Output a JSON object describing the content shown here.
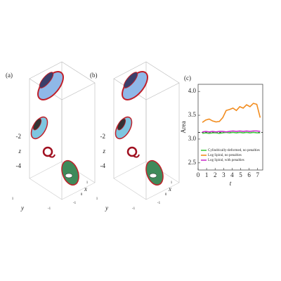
{
  "panels": [
    {
      "label": "(a)",
      "z_label": "z",
      "z_ticks": [
        -2,
        -4
      ],
      "y_label": "y",
      "y_ticks": [
        1,
        -1
      ],
      "x_label": "x",
      "x_ticks": [
        1,
        0,
        -1
      ]
    },
    {
      "label": "(b)",
      "z_label": "z",
      "z_ticks": [
        -2,
        -4
      ],
      "y_label": "y",
      "y_ticks": [
        1,
        -1
      ],
      "x_label": "x",
      "x_ticks": [
        1,
        0,
        -1
      ]
    }
  ],
  "chart_data": {
    "type": "line",
    "label": "(c)",
    "x_label": "t",
    "y_label": "Area",
    "x": [
      0.5,
      0.9,
      1.3,
      1.7,
      2.1,
      2.5,
      2.9,
      3.3,
      3.7,
      4.1,
      4.5,
      4.9,
      5.3,
      5.7,
      6.1,
      6.5,
      6.9,
      7.3
    ],
    "series": [
      {
        "name": "Cylindrically-deformed, no penalties",
        "color": "#44cc44",
        "values": [
          3.12,
          3.13,
          3.12,
          3.13,
          3.13,
          3.12,
          3.13,
          3.14,
          3.13,
          3.14,
          3.13,
          3.14,
          3.13,
          3.14,
          3.13,
          3.14,
          3.13,
          3.13
        ]
      },
      {
        "name": "Log Spiral, no penalties",
        "color": "#f28c1e",
        "values": [
          3.35,
          3.4,
          3.42,
          3.38,
          3.36,
          3.37,
          3.45,
          3.6,
          3.62,
          3.65,
          3.6,
          3.68,
          3.65,
          3.72,
          3.68,
          3.75,
          3.73,
          3.45
        ]
      },
      {
        "name": "Log Spiral, with penalties",
        "color": "#cc33cc",
        "values": [
          3.15,
          3.16,
          3.15,
          3.16,
          3.15,
          3.16,
          3.16,
          3.15,
          3.16,
          3.17,
          3.16,
          3.17,
          3.16,
          3.17,
          3.16,
          3.17,
          3.17,
          3.16
        ]
      }
    ],
    "reference_line": 3.14,
    "xlim": [
      0,
      7.6
    ],
    "xticks": [
      0,
      1,
      2,
      3,
      4,
      5,
      6,
      7
    ],
    "ylim": [
      2.35,
      4.15
    ],
    "yticks": [
      2.5,
      {
        "value": 3,
        "label": "3.0"
      },
      3.5,
      {
        "value": 4,
        "label": "4.0"
      }
    ],
    "legend": "bottom"
  }
}
